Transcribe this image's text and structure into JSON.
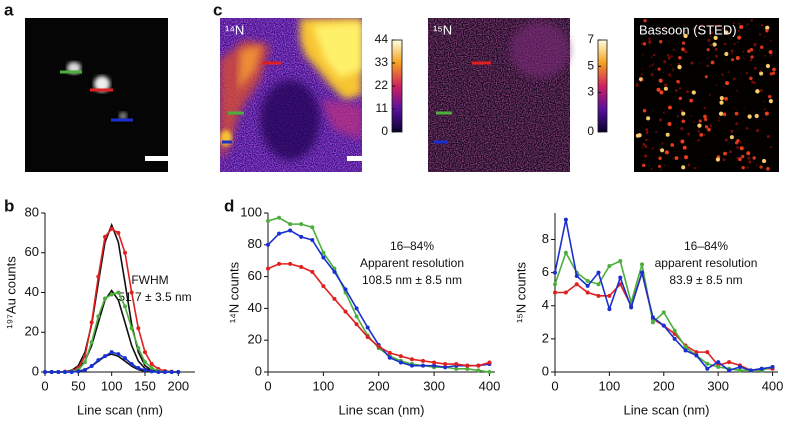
{
  "panels": {
    "a": "a",
    "b": "b",
    "c": "c",
    "d": "d"
  },
  "images": {
    "n14_label": "¹⁴N",
    "n15_label": "¹⁵N",
    "sted_label": "Bassoon (STED)"
  },
  "colorbars": [
    {
      "lim": [
        0,
        44
      ],
      "ticks": [
        44,
        33,
        22,
        11,
        0
      ]
    },
    {
      "lim": [
        0,
        7
      ],
      "ticks": [
        7,
        5,
        3,
        0
      ]
    }
  ],
  "chart_data": [
    {
      "type": "line",
      "x_label": "Line scan (nm)",
      "y_label": "¹⁹⁷Au counts",
      "annotations": [
        "FWHM",
        "51.7 ± 3.5 nm"
      ],
      "xlim": [
        0,
        225
      ],
      "xticks": [
        0,
        50,
        100,
        150,
        200
      ],
      "ylim": [
        0,
        80
      ],
      "yticks": [
        0,
        20,
        40,
        60,
        80
      ],
      "x": [
        0,
        10,
        20,
        30,
        40,
        50,
        60,
        70,
        80,
        90,
        100,
        110,
        120,
        130,
        140,
        150,
        160,
        170,
        180,
        190,
        200
      ],
      "series": [
        {
          "color": "#111111",
          "markers": false,
          "values": [
            0,
            0,
            0,
            0.2,
            0.8,
            3.2,
            10,
            24,
            44.9,
            65.3,
            74,
            65.3,
            44.9,
            24,
            10,
            3.2,
            0.8,
            0.2,
            0,
            0,
            0
          ]
        },
        {
          "color": "#111111",
          "markers": false,
          "values": [
            0,
            0,
            0,
            0.1,
            0.5,
            1.8,
            5.5,
            13.3,
            24.9,
            36.2,
            41,
            36.2,
            24.9,
            13.3,
            5.5,
            1.8,
            0.5,
            0.1,
            0,
            0,
            0
          ]
        },
        {
          "color": "#111111",
          "markers": false,
          "values": [
            0,
            0,
            0,
            0,
            0.1,
            0.4,
            1.2,
            2.9,
            5.5,
            7.9,
            9,
            7.9,
            5.5,
            2.9,
            1.2,
            0.4,
            0.1,
            0,
            0,
            0,
            0
          ]
        },
        {
          "color": "#e02020",
          "markers": true,
          "values": [
            0,
            0,
            0,
            0.2,
            0.5,
            2,
            8,
            25,
            48,
            68,
            72,
            70,
            60,
            40,
            22,
            10,
            4,
            1.5,
            0.5,
            0.2,
            0
          ]
        },
        {
          "color": "#4caf3c",
          "markers": true,
          "values": [
            0,
            0,
            0,
            0,
            0.3,
            1,
            5,
            15,
            28,
            37,
            39,
            40,
            33,
            22,
            12,
            5,
            2,
            0.5,
            0,
            0,
            0
          ]
        },
        {
          "color": "#1a2fd0",
          "markers": true,
          "values": [
            0,
            0,
            0,
            0,
            0,
            0.3,
            1,
            3,
            6,
            8,
            10,
            9,
            7,
            4,
            2,
            1,
            0.3,
            0,
            0,
            0,
            0
          ]
        }
      ]
    },
    {
      "type": "line",
      "x_label": "Line scan (nm)",
      "y_label": "¹⁴N counts",
      "annotations": [
        "16–84%",
        "Apparent resolution",
        "108.5 nm ± 8.5 nm"
      ],
      "xlim": [
        0,
        410
      ],
      "xticks": [
        0,
        100,
        200,
        300,
        400
      ],
      "ylim": [
        0,
        100
      ],
      "yticks": [
        0,
        20,
        40,
        60,
        80,
        100
      ],
      "x": [
        0,
        20,
        40,
        60,
        80,
        100,
        120,
        140,
        160,
        180,
        200,
        220,
        240,
        260,
        280,
        300,
        320,
        340,
        360,
        380,
        400
      ],
      "series": [
        {
          "color": "#4caf3c",
          "markers": true,
          "values": [
            95,
            97,
            93,
            93,
            91,
            75,
            65,
            50,
            35,
            23,
            15,
            10,
            7,
            5,
            4,
            3,
            3,
            2,
            2,
            1,
            0
          ]
        },
        {
          "color": "#1a2fd0",
          "markers": true,
          "values": [
            80,
            87,
            89,
            85,
            83,
            72,
            63,
            52,
            40,
            28,
            17,
            9,
            6,
            4,
            4,
            4,
            3,
            4,
            4,
            4,
            5
          ]
        },
        {
          "color": "#e02020",
          "markers": true,
          "values": [
            65,
            68,
            68,
            66,
            63,
            54,
            46,
            38,
            30,
            22,
            16,
            12,
            10,
            8,
            7,
            6,
            5,
            5,
            4,
            4,
            6
          ]
        }
      ]
    },
    {
      "type": "line",
      "x_label": "Line scan (nm)",
      "y_label": "¹⁵N counts",
      "annotations": [
        "16–84%",
        "apparent resolution",
        "83.9 ± 8.5 nm"
      ],
      "xlim": [
        0,
        410
      ],
      "xticks": [
        0,
        100,
        200,
        300,
        400
      ],
      "ylim": [
        0,
        9.6
      ],
      "yticks": [
        0,
        2,
        4,
        6,
        8
      ],
      "x": [
        0,
        20,
        40,
        60,
        80,
        100,
        120,
        140,
        160,
        180,
        200,
        220,
        240,
        260,
        280,
        300,
        320,
        340,
        360,
        380,
        400
      ],
      "series": [
        {
          "color": "#e02020",
          "markers": true,
          "values": [
            4.8,
            4.8,
            5.3,
            4.8,
            4.6,
            4.6,
            5.3,
            4.0,
            6.0,
            3.2,
            2.8,
            2.3,
            1.6,
            1.2,
            1.2,
            0.4,
            0.6,
            0.4,
            0.1,
            0.2,
            0.2
          ]
        },
        {
          "color": "#4caf3c",
          "markers": true,
          "values": [
            5.3,
            7.2,
            6.0,
            5.5,
            5.3,
            6.4,
            6.7,
            4.2,
            6.5,
            3.0,
            3.6,
            2.5,
            1.5,
            1.0,
            0.5,
            0.3,
            0.2,
            0.1,
            0.1,
            0.1,
            0.3
          ]
        },
        {
          "color": "#1a2fd0",
          "markers": true,
          "values": [
            6.0,
            9.2,
            5.8,
            5.2,
            6.0,
            3.8,
            5.7,
            3.9,
            6.0,
            3.3,
            2.8,
            2.0,
            1.3,
            1.0,
            0.2,
            0.6,
            0.1,
            0.3,
            0.1,
            0.2,
            0.3
          ]
        }
      ]
    }
  ]
}
